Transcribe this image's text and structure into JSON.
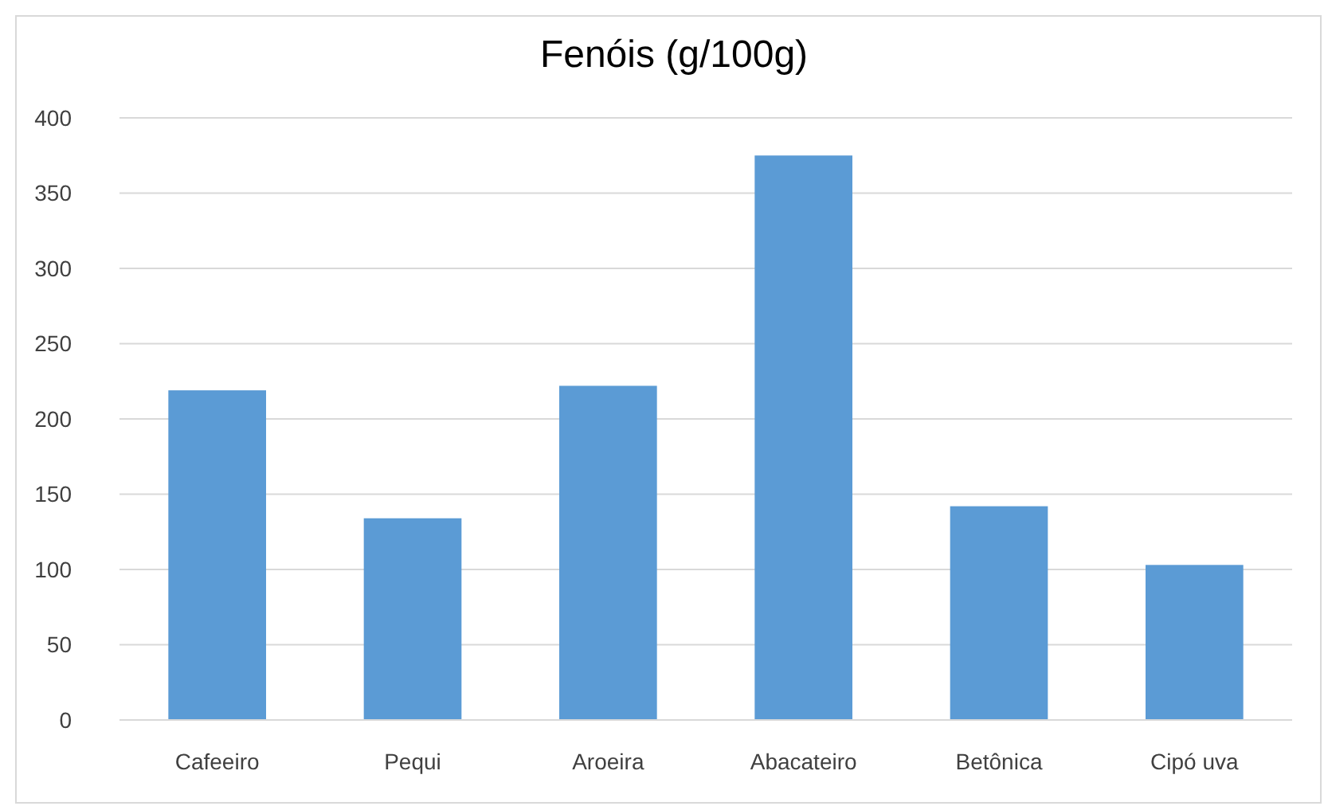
{
  "chart_data": {
    "type": "bar",
    "title": "Fenóis (g/100g)",
    "categories": [
      "Cafeeiro",
      "Pequi",
      "Aroeira",
      "Abacateiro",
      "Betônica",
      "Cipó uva"
    ],
    "values": [
      219,
      134,
      222,
      375,
      142,
      103
    ],
    "color": "#5b9bd5",
    "ylim": [
      0,
      400
    ],
    "yticks": [
      0,
      50,
      100,
      150,
      200,
      250,
      300,
      350,
      400
    ],
    "grid": "y"
  }
}
